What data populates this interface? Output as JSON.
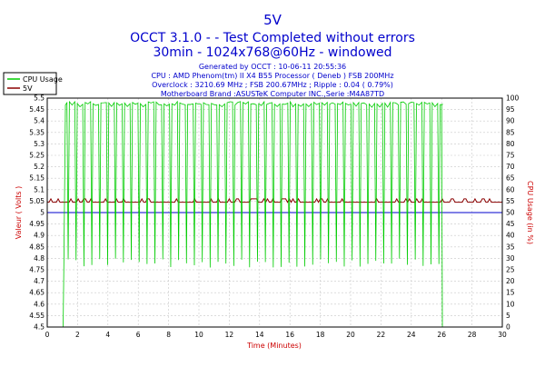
{
  "chart_data": {
    "type": "line",
    "title": "5V",
    "subtitle_lines": [
      "OCCT 3.1.0 -  - Test Completed without errors",
      "30min - 1024x768@60Hz - windowed"
    ],
    "info_lines": [
      "Generated by OCCT : 10-06-11 20:55:36",
      "CPU : AMD Phenom(tm) II X4 B55 Processor ( Deneb ) FSB 200MHz",
      "Overclock : 3210.69 MHz ; FSB 200.67MHz ; Ripple : 0.04 ( 0.79%)",
      "Motherboard Brand :ASUSTeK Computer INC.,Serie :M4A87TD"
    ],
    "xlabel": "Time (Minutes)",
    "ylabel_left": "Valeur ( Volts )",
    "ylabel_right": "CPU Usage (in %)",
    "xlim": [
      0,
      30
    ],
    "ylim_left": [
      4.5,
      5.5
    ],
    "ylim_right": [
      0,
      100
    ],
    "x_ticks": [
      "0",
      "2",
      "4",
      "6",
      "8",
      "10",
      "12",
      "14",
      "16",
      "18",
      "20",
      "22",
      "24",
      "26",
      "28",
      "30"
    ],
    "y_ticks_left": [
      "4.5",
      "4.55",
      "4.6",
      "4.65",
      "4.7",
      "4.75",
      "4.8",
      "4.85",
      "4.9",
      "4.95",
      "5",
      "5.05",
      "5.1",
      "5.15",
      "5.2",
      "5.25",
      "5.3",
      "5.35",
      "5.4",
      "5.45",
      "5.5"
    ],
    "y_ticks_right": [
      "0",
      "5",
      "10",
      "15",
      "20",
      "25",
      "30",
      "35",
      "40",
      "45",
      "50",
      "55",
      "60",
      "65",
      "70",
      "75",
      "80",
      "85",
      "90",
      "95",
      "100"
    ],
    "grid": true,
    "legend_position": "top-left",
    "series": [
      {
        "name": "CPU Usage",
        "axis": "right",
        "color": "#00cc00",
        "points": [
          [
            0,
            0
          ],
          [
            1.05,
            0
          ],
          [
            1.1,
            30
          ],
          [
            1.2,
            98
          ],
          [
            26,
            98
          ],
          [
            26.05,
            0
          ],
          [
            30,
            0
          ]
        ],
        "dip_start": 1.3,
        "dip_end": 25.9,
        "dip_period": 0.52,
        "dip_floor": 26
      },
      {
        "name": "5V",
        "axis": "left",
        "color": "#8b0000",
        "points": [
          [
            0,
            5.045
          ],
          [
            30,
            5.045
          ]
        ],
        "noise": [
          5.045,
          5.06
        ]
      },
      {
        "name": "",
        "axis": "left",
        "color": "#0000cc",
        "points": [
          [
            0,
            5.0
          ],
          [
            30,
            5.0
          ]
        ]
      }
    ]
  },
  "colors": {
    "title": "#0000cc",
    "info": "#0000cc",
    "axis_label": "#cc0000",
    "grid": "#c8c8c8",
    "frame": "#000000"
  }
}
